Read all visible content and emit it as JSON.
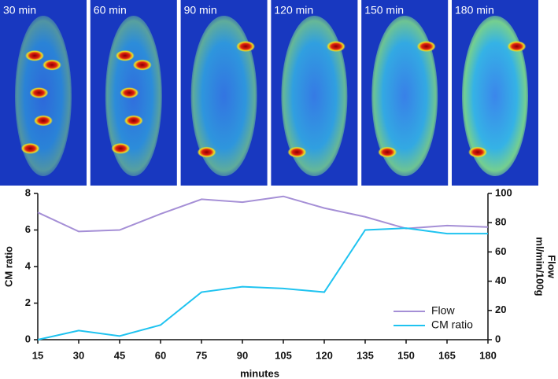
{
  "image_panels": [
    {
      "label": "30 min"
    },
    {
      "label": "60 min"
    },
    {
      "label": "90 min"
    },
    {
      "label": "120 min"
    },
    {
      "label": "150 min"
    },
    {
      "label": "180 min"
    }
  ],
  "chart_data": {
    "type": "line",
    "xlabel": "minutes",
    "ylabel": "CM ratio",
    "y2label": [
      "Flow",
      "ml/min/100g"
    ],
    "x": [
      15,
      30,
      45,
      60,
      75,
      90,
      105,
      120,
      135,
      150,
      165,
      180
    ],
    "xlim": [
      15,
      180
    ],
    "xticks": [
      15,
      30,
      45,
      60,
      75,
      90,
      105,
      120,
      135,
      150,
      165,
      180
    ],
    "ylim": [
      0,
      8
    ],
    "yticks": [
      0,
      2,
      4,
      6,
      8
    ],
    "y2lim": [
      0,
      100
    ],
    "y2ticks": [
      0,
      20,
      40,
      60,
      80,
      100
    ],
    "legend": "lower right",
    "series": [
      {
        "name": "Flow",
        "color": "#a58fd6",
        "axis": "y2",
        "values": [
          87,
          74,
          75,
          86,
          96,
          94,
          98,
          90,
          84,
          76,
          78,
          77
        ]
      },
      {
        "name": "CM ratio",
        "color": "#1fc3f0",
        "values": [
          0,
          0.5,
          0.2,
          0.8,
          2.6,
          2.9,
          2.8,
          2.6,
          6.0,
          6.1,
          5.8,
          5.8
        ]
      }
    ]
  }
}
